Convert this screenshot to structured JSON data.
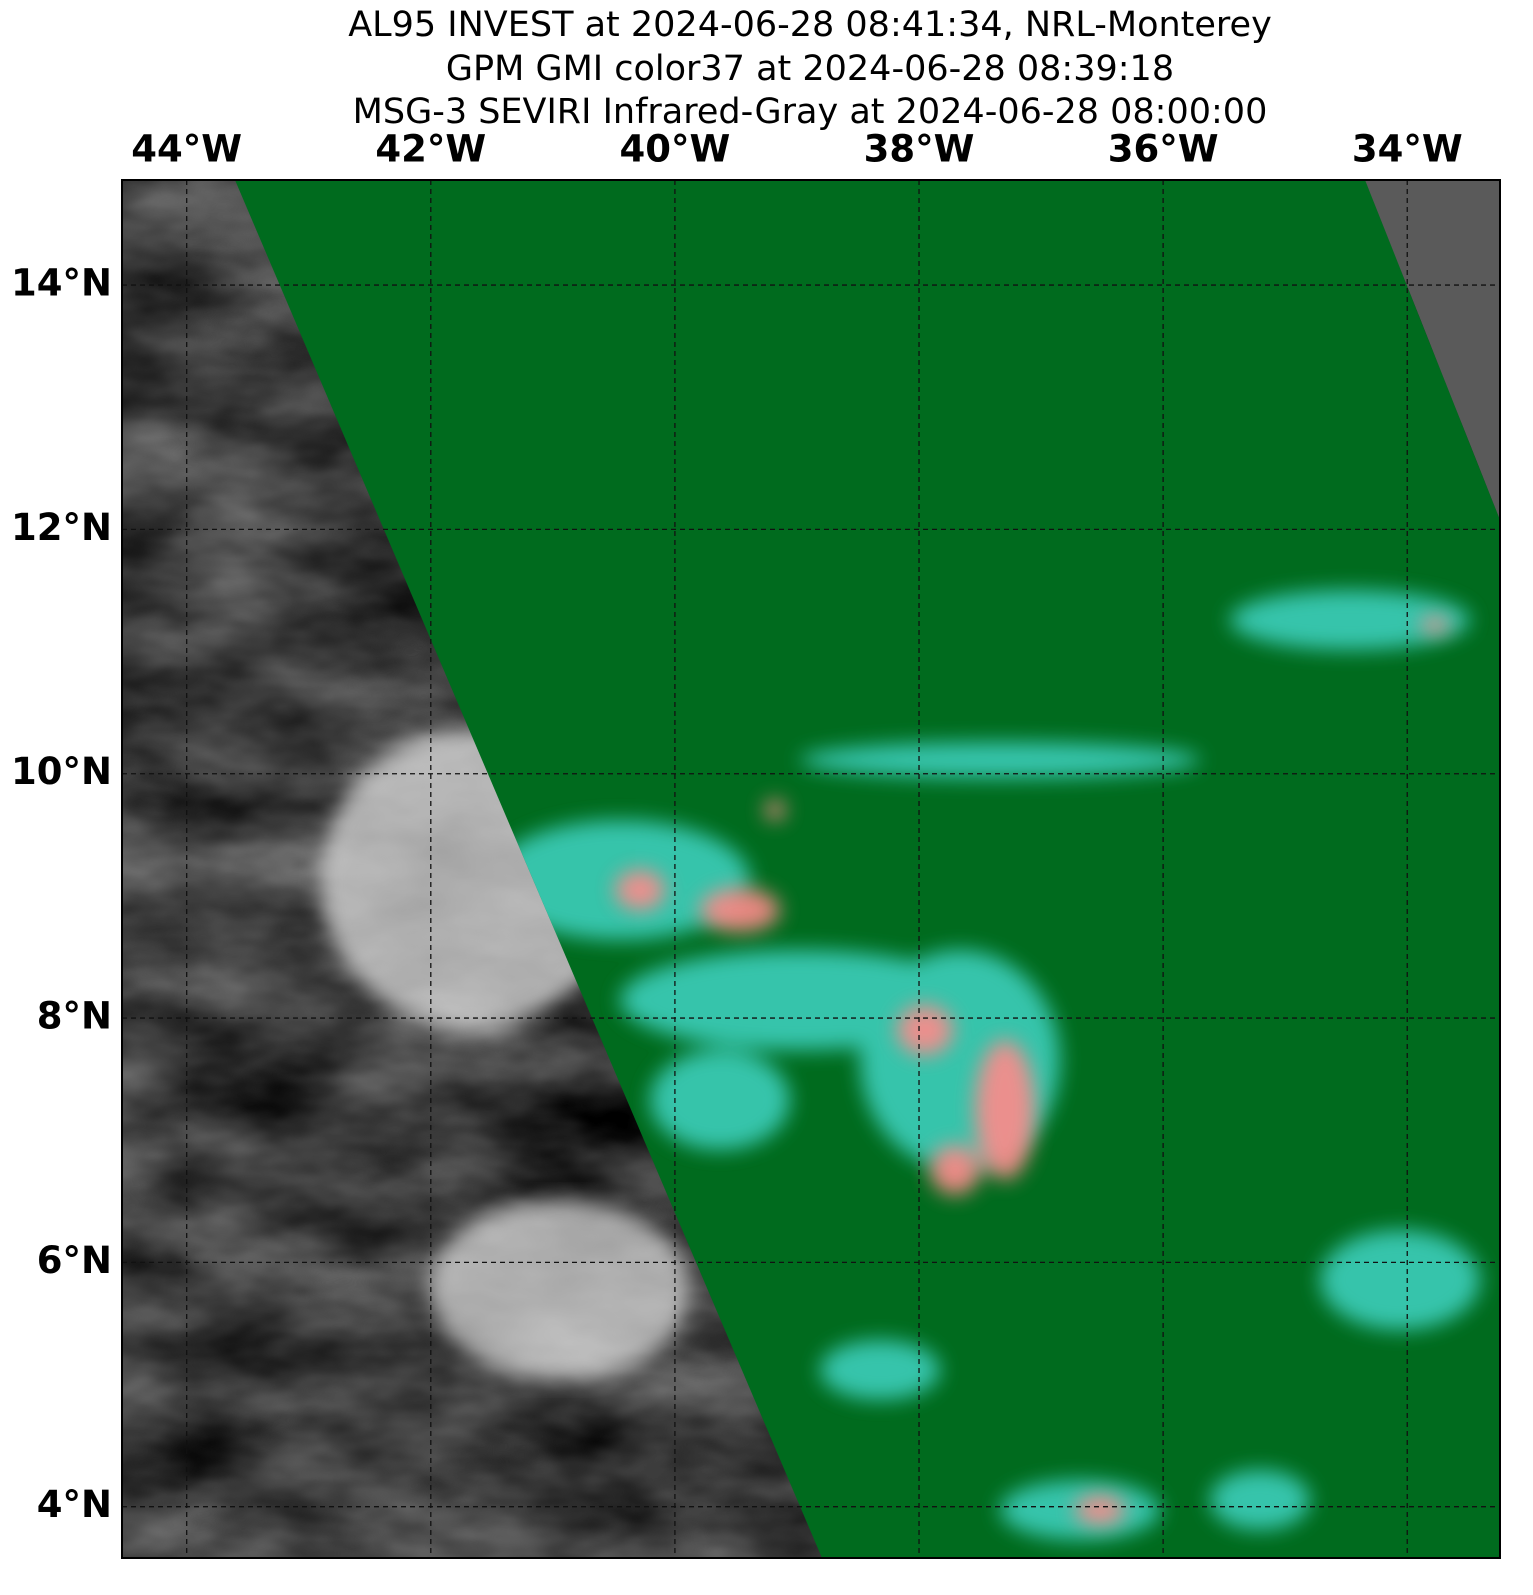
{
  "title": [
    "AL95 INVEST at 2024-06-28 08:41:34, NRL-Monterey",
    "GPM GMI color37 at 2024-06-28 08:39:18",
    "MSG-3 SEVIRI Infrared-Gray at 2024-06-28 08:00:00"
  ],
  "map": {
    "xlim": [
      -44.53,
      -33.24
    ],
    "ylim": [
      3.58,
      14.86
    ],
    "xticks": [
      {
        "value": -44,
        "label": "44°W"
      },
      {
        "value": -42,
        "label": "42°W"
      },
      {
        "value": -40,
        "label": "40°W"
      },
      {
        "value": -38,
        "label": "38°W"
      },
      {
        "value": -36,
        "label": "36°W"
      },
      {
        "value": -34,
        "label": "34°W"
      }
    ],
    "yticks": [
      {
        "value": 14,
        "label": "14°N"
      },
      {
        "value": 12,
        "label": "12°N"
      },
      {
        "value": 10,
        "label": "10°N"
      },
      {
        "value": 8,
        "label": "8°N"
      },
      {
        "value": 6,
        "label": "6°N"
      },
      {
        "value": 4,
        "label": "4°N"
      }
    ]
  }
}
